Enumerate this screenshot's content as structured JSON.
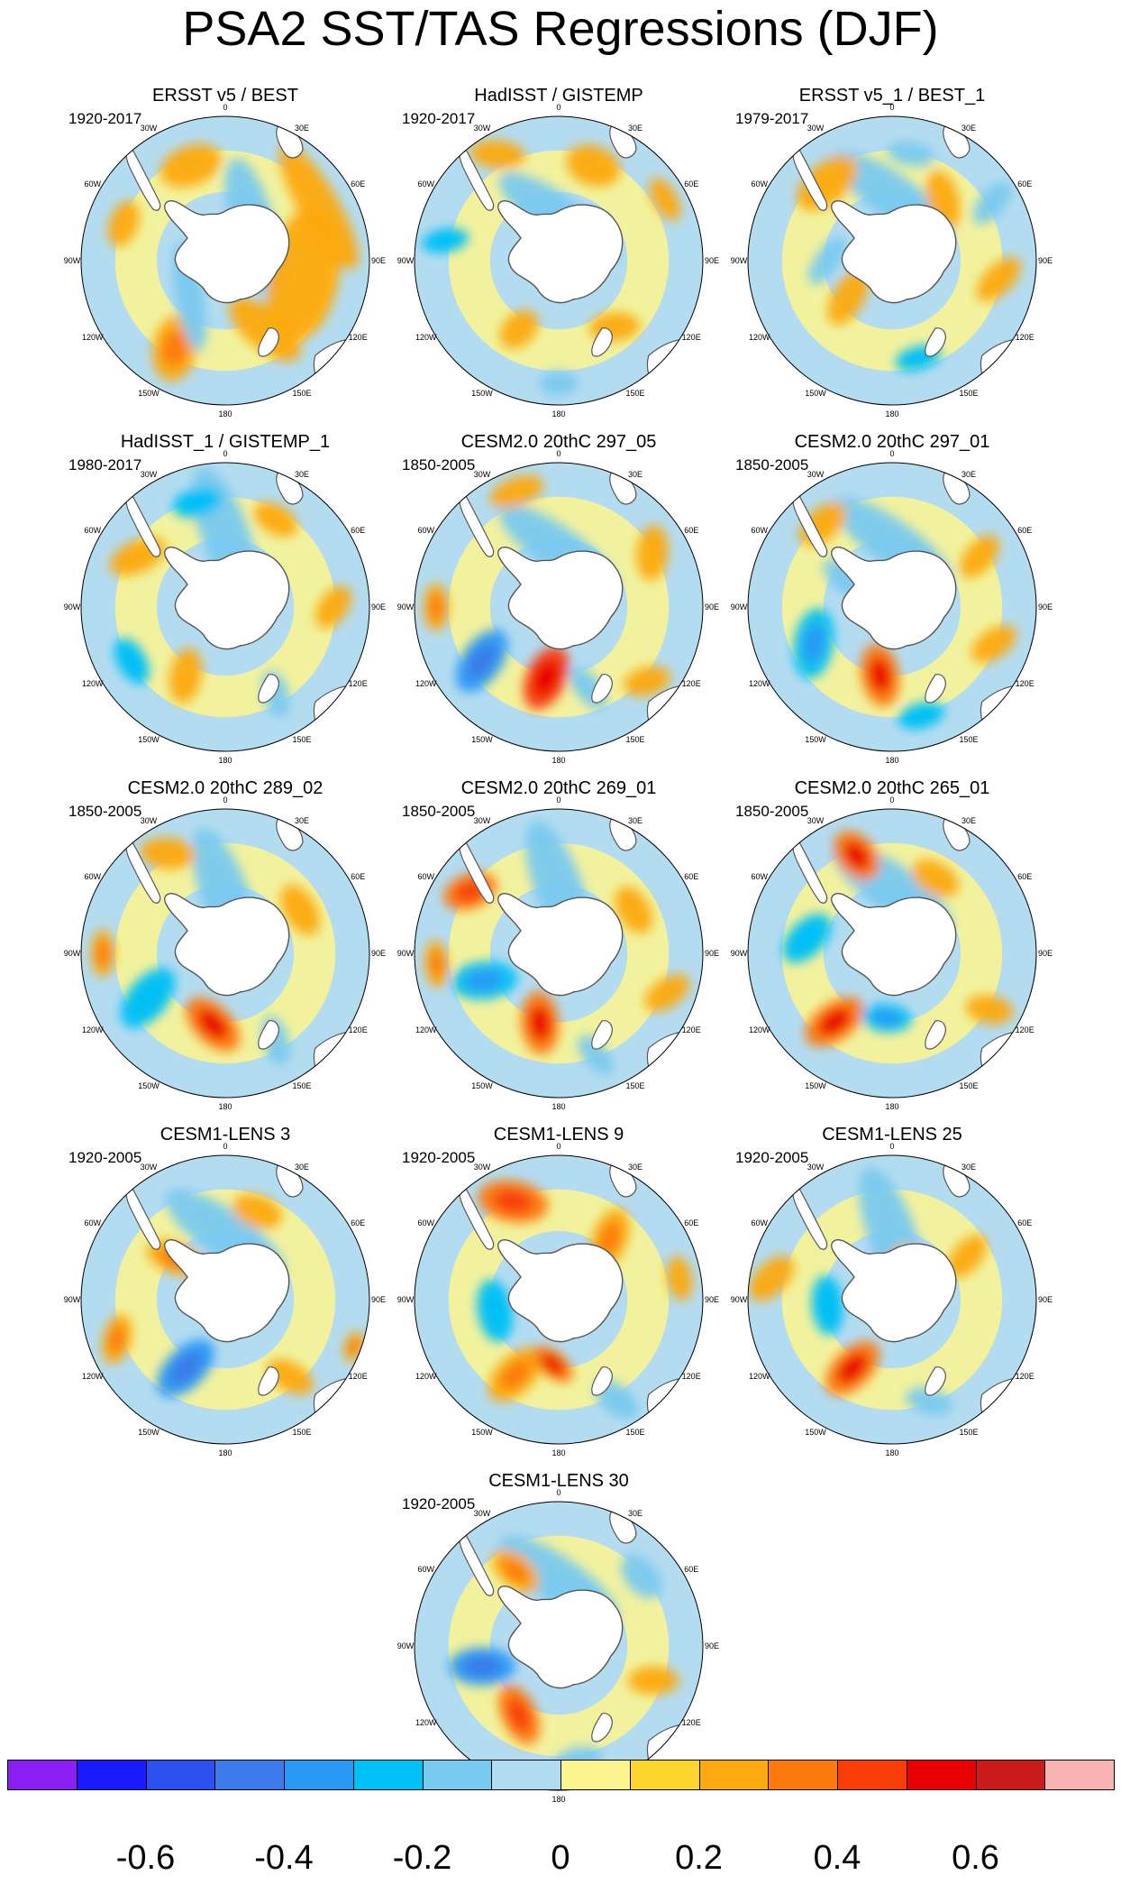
{
  "title": "PSA2 SST/TAS Regressions (DJF)",
  "longitude_labels": [
    "0",
    "30E",
    "60E",
    "90E",
    "120E",
    "150E",
    "180",
    "150W",
    "120W",
    "90W",
    "60W",
    "30W"
  ],
  "colorbar": {
    "colors": [
      "#8a1ff2",
      "#1a1aff",
      "#2b52f0",
      "#3a7aea",
      "#2a99f5",
      "#00c0f5",
      "#78c9ef",
      "#b4dcf0",
      "#fdf68f",
      "#fdd52e",
      "#fca911",
      "#fc7a0c",
      "#f83d09",
      "#e80000",
      "#cc1b1b",
      "#f9b3b3"
    ],
    "tick_labels": [
      "-0.6",
      "-0.4",
      "-0.2",
      "0",
      "0.2",
      "0.4",
      "0.6"
    ]
  },
  "panels": [
    {
      "title": "ERSST v5 / BEST",
      "years": "1920-2017",
      "blobs": [
        [
          -0.2,
          40,
          0.3,
          0.9,
          0.28,
          1
        ],
        [
          0.2,
          100,
          0.55,
          0.85,
          0.45,
          0
        ],
        [
          0.2,
          60,
          0.75,
          0.9,
          0.25,
          0
        ],
        [
          0.2,
          -20,
          0.7,
          0.4,
          0.25,
          0
        ],
        [
          0.2,
          -70,
          0.75,
          0.3,
          0.18,
          0
        ],
        [
          0.3,
          -150,
          0.7,
          0.42,
          0.28,
          2
        ],
        [
          -0.2,
          -135,
          0.35,
          0.7,
          0.18,
          1
        ],
        [
          0.2,
          150,
          0.55,
          0.55,
          0.25,
          2
        ]
      ]
    },
    {
      "title": "HadISST / GISTEMP",
      "years": "1920-2017",
      "blobs": [
        [
          -0.2,
          0,
          0.3,
          0.9,
          0.28,
          1
        ],
        [
          0.2,
          20,
          0.7,
          0.35,
          0.25,
          0
        ],
        [
          0.2,
          60,
          0.85,
          0.3,
          0.15,
          0
        ],
        [
          0.2,
          -30,
          0.85,
          0.35,
          0.18,
          1
        ],
        [
          -0.3,
          -80,
          0.8,
          0.3,
          0.15,
          2
        ],
        [
          0.2,
          -150,
          0.55,
          0.28,
          0.2,
          3
        ],
        [
          -0.2,
          180,
          0.85,
          0.25,
          0.15,
          0
        ],
        [
          0.2,
          140,
          0.6,
          0.32,
          0.18,
          1
        ]
      ]
    },
    {
      "title": "ERSST v5_1 / BEST_1",
      "years": "1979-2017",
      "blobs": [
        [
          -0.2,
          0,
          0.45,
          0.9,
          0.28,
          1
        ],
        [
          0.2,
          -40,
          0.7,
          0.45,
          0.25,
          0
        ],
        [
          0.2,
          40,
          0.55,
          0.38,
          0.2,
          1
        ],
        [
          -0.2,
          10,
          0.75,
          0.3,
          0.15,
          0
        ],
        [
          -0.2,
          60,
          0.8,
          0.32,
          0.16,
          2
        ],
        [
          -0.2,
          -90,
          0.45,
          0.35,
          0.15,
          1
        ],
        [
          0.2,
          -130,
          0.4,
          0.38,
          0.2,
          2
        ],
        [
          -0.3,
          165,
          0.7,
          0.3,
          0.15,
          0
        ],
        [
          0.2,
          100,
          0.75,
          0.35,
          0.18,
          1
        ]
      ]
    },
    {
      "title": "HadISST_1 / GISTEMP_1",
      "years": "1980-2017",
      "blobs": [
        [
          -0.2,
          0,
          0.5,
          0.9,
          0.3,
          2
        ],
        [
          -0.3,
          -15,
          0.75,
          0.32,
          0.18,
          0
        ],
        [
          0.2,
          -60,
          0.7,
          0.38,
          0.2,
          1
        ],
        [
          0.2,
          30,
          0.7,
          0.3,
          0.18,
          0
        ],
        [
          0.2,
          -150,
          0.55,
          0.35,
          0.2,
          2
        ],
        [
          -0.3,
          -120,
          0.75,
          0.32,
          0.18,
          0
        ],
        [
          0.2,
          90,
          0.75,
          0.3,
          0.18,
          1
        ],
        [
          -0.2,
          150,
          0.7,
          0.3,
          0.16,
          3
        ]
      ]
    },
    {
      "title": "CESM2.0 20thC 297_05",
      "years": "1850-2005",
      "blobs": [
        [
          -0.2,
          0,
          0.4,
          0.9,
          0.28,
          1
        ],
        [
          0.2,
          -20,
          0.85,
          0.35,
          0.18,
          0
        ],
        [
          0.2,
          60,
          0.75,
          0.35,
          0.2,
          1
        ],
        [
          -0.5,
          -125,
          0.65,
          0.45,
          0.25,
          2
        ],
        [
          0.6,
          -170,
          0.5,
          0.42,
          0.25,
          3
        ],
        [
          0.3,
          -90,
          0.85,
          0.3,
          0.16,
          0
        ],
        [
          -0.2,
          160,
          0.6,
          0.32,
          0.16,
          2
        ],
        [
          0.2,
          130,
          0.8,
          0.3,
          0.18,
          1
        ]
      ]
    },
    {
      "title": "CESM2.0 20thC 297_01",
      "years": "1850-2005",
      "blobs": [
        [
          -0.2,
          0,
          0.45,
          0.9,
          0.28,
          1
        ],
        [
          0.2,
          -40,
          0.75,
          0.35,
          0.2,
          0
        ],
        [
          0.2,
          60,
          0.7,
          0.32,
          0.18,
          2
        ],
        [
          -0.4,
          -115,
          0.6,
          0.45,
          0.25,
          1
        ],
        [
          0.5,
          -170,
          0.48,
          0.4,
          0.24,
          2
        ],
        [
          -0.3,
          165,
          0.78,
          0.3,
          0.16,
          0
        ],
        [
          0.2,
          110,
          0.75,
          0.32,
          0.18,
          1
        ],
        [
          -0.2,
          -60,
          0.4,
          0.3,
          0.15,
          3
        ]
      ]
    },
    {
      "title": "CESM2.0 20thC 289_02",
      "years": "1850-2005",
      "blobs": [
        [
          -0.2,
          0,
          0.4,
          0.9,
          0.3,
          2
        ],
        [
          0.2,
          -30,
          0.8,
          0.35,
          0.2,
          1
        ],
        [
          0.2,
          60,
          0.6,
          0.35,
          0.2,
          0
        ],
        [
          -0.3,
          -120,
          0.62,
          0.45,
          0.25,
          2
        ],
        [
          0.5,
          -170,
          0.5,
          0.42,
          0.24,
          1
        ],
        [
          0.3,
          -90,
          0.85,
          0.3,
          0.15,
          0
        ],
        [
          -0.2,
          150,
          0.7,
          0.32,
          0.16,
          3
        ]
      ]
    },
    {
      "title": "CESM2.0 20thC 269_01",
      "years": "1850-2005",
      "blobs": [
        [
          -0.2,
          0,
          0.45,
          0.9,
          0.3,
          2
        ],
        [
          0.4,
          -55,
          0.75,
          0.35,
          0.22,
          1
        ],
        [
          0.2,
          60,
          0.6,
          0.32,
          0.2,
          0
        ],
        [
          -0.4,
          -110,
          0.55,
          0.42,
          0.24,
          3
        ],
        [
          0.5,
          -165,
          0.5,
          0.4,
          0.24,
          2
        ],
        [
          0.3,
          -95,
          0.85,
          0.3,
          0.15,
          0
        ],
        [
          0.2,
          110,
          0.8,
          0.32,
          0.18,
          1
        ],
        [
          -0.2,
          160,
          0.75,
          0.3,
          0.15,
          2
        ]
      ]
    },
    {
      "title": "CESM2.0 20thC 265_01",
      "years": "1850-2005",
      "blobs": [
        [
          -0.2,
          0,
          0.45,
          0.9,
          0.3,
          1
        ],
        [
          0.5,
          -20,
          0.72,
          0.35,
          0.24,
          2
        ],
        [
          0.2,
          30,
          0.6,
          0.32,
          0.2,
          0
        ],
        [
          -0.3,
          -80,
          0.6,
          0.38,
          0.22,
          1
        ],
        [
          0.5,
          -140,
          0.62,
          0.42,
          0.24,
          3
        ],
        [
          -0.4,
          -175,
          0.45,
          0.32,
          0.18,
          0
        ],
        [
          0.2,
          120,
          0.78,
          0.3,
          0.18,
          2
        ]
      ]
    },
    {
      "title": "CESM1-LENS 3",
      "years": "1920-2005",
      "blobs": [
        [
          -0.2,
          0,
          0.45,
          0.9,
          0.3,
          1
        ],
        [
          0.3,
          -50,
          0.45,
          0.38,
          0.2,
          2
        ],
        [
          0.2,
          20,
          0.65,
          0.32,
          0.2,
          0
        ],
        [
          -0.5,
          -150,
          0.55,
          0.45,
          0.25,
          3
        ],
        [
          0.3,
          -110,
          0.8,
          0.32,
          0.18,
          1
        ],
        [
          0.2,
          140,
          0.7,
          0.32,
          0.18,
          2
        ],
        [
          0.3,
          110,
          0.95,
          0.2,
          0.12,
          0
        ]
      ]
    },
    {
      "title": "CESM1-LENS 9",
      "years": "1920-2005",
      "blobs": [
        [
          0.4,
          -25,
          0.75,
          0.45,
          0.26,
          1
        ],
        [
          0.3,
          40,
          0.55,
          0.4,
          0.22,
          2
        ],
        [
          -0.3,
          -100,
          0.45,
          0.4,
          0.22,
          0
        ],
        [
          0.3,
          -150,
          0.6,
          0.42,
          0.24,
          3
        ],
        [
          0.5,
          -175,
          0.45,
          0.3,
          0.16,
          1
        ],
        [
          -0.2,
          150,
          0.8,
          0.32,
          0.18,
          2
        ],
        [
          0.2,
          80,
          0.85,
          0.28,
          0.16,
          0
        ]
      ]
    },
    {
      "title": "CESM1-LENS 25",
      "years": "1920-2005",
      "blobs": [
        [
          -0.2,
          0,
          0.45,
          0.9,
          0.3,
          2
        ],
        [
          0.2,
          -80,
          0.85,
          0.35,
          0.2,
          1
        ],
        [
          -0.3,
          -95,
          0.45,
          0.38,
          0.2,
          0
        ],
        [
          0.5,
          -150,
          0.55,
          0.42,
          0.24,
          3
        ],
        [
          0.2,
          60,
          0.6,
          0.32,
          0.18,
          2
        ],
        [
          -0.2,
          160,
          0.75,
          0.3,
          0.16,
          1
        ],
        [
          0.2,
          30,
          0.3,
          0.3,
          0.18,
          0
        ]
      ]
    },
    {
      "title": "CESM1-LENS 30",
      "years": "1920-2005",
      "blobs": [
        [
          -0.2,
          0,
          0.45,
          0.9,
          0.3,
          1
        ],
        [
          0.3,
          -30,
          0.6,
          0.35,
          0.2,
          2
        ],
        [
          -0.2,
          50,
          0.75,
          0.32,
          0.2,
          0
        ],
        [
          -0.5,
          -105,
          0.55,
          0.42,
          0.24,
          3
        ],
        [
          0.4,
          -150,
          0.55,
          0.4,
          0.22,
          1
        ],
        [
          0.2,
          110,
          0.7,
          0.32,
          0.18,
          2
        ],
        [
          -0.2,
          170,
          0.8,
          0.3,
          0.16,
          0
        ]
      ]
    }
  ]
}
